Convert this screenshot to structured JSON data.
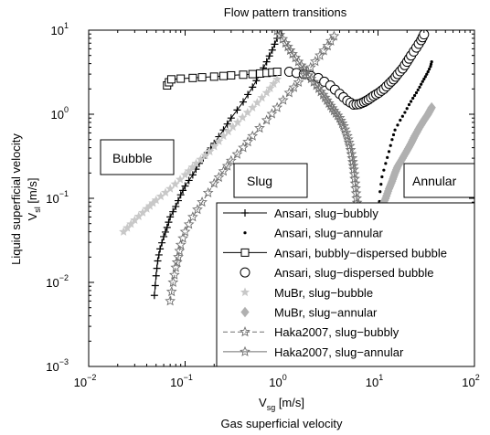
{
  "chart_data": {
    "type": "line",
    "title": "Flow pattern transitions",
    "xlabel_main": "V",
    "xlabel_sub": "sg",
    "xlabel_unit": " [m/s]",
    "xlabel_desc": "Gas superficial velocity",
    "ylabel_desc": "Liquid superficial velocity",
    "ylabel_main": "V",
    "ylabel_sub": "sl",
    "ylabel_unit": " [m/s]",
    "x_scale": "log",
    "y_scale": "log",
    "xlim": [
      0.01,
      100
    ],
    "ylim": [
      0.001,
      10
    ],
    "x_ticks": [
      {
        "v": 0.01,
        "base": "10",
        "exp": "−2"
      },
      {
        "v": 0.1,
        "base": "10",
        "exp": "−1"
      },
      {
        "v": 1,
        "base": "10",
        "exp": "0"
      },
      {
        "v": 10,
        "base": "10",
        "exp": "1"
      },
      {
        "v": 100,
        "base": "10",
        "exp": "2"
      }
    ],
    "y_ticks": [
      {
        "v": 0.001,
        "base": "10",
        "exp": "−3"
      },
      {
        "v": 0.01,
        "base": "10",
        "exp": "−2"
      },
      {
        "v": 0.1,
        "base": "10",
        "exp": "−1"
      },
      {
        "v": 1,
        "base": "10",
        "exp": "0"
      },
      {
        "v": 10,
        "base": "10",
        "exp": "1"
      }
    ],
    "grid": false,
    "legend_position": "bottom-right",
    "annotations": [
      {
        "text": "Bubble",
        "x": 0.035,
        "y": 0.3
      },
      {
        "text": "Slug",
        "x": 0.32,
        "y": 0.12
      },
      {
        "text": "Annular",
        "x": 18,
        "y": 0.12
      }
    ],
    "series": [
      {
        "name": "Ansari, slug−bubbly",
        "style": "plus",
        "color": "#000000",
        "x": [
          0.048,
          0.05,
          0.052,
          0.055,
          0.06,
          0.065,
          0.07,
          0.08,
          0.09,
          0.1,
          0.12,
          0.14,
          0.17,
          0.2,
          0.25,
          0.3,
          0.4,
          0.5,
          0.6,
          0.7,
          0.8,
          0.9
        ],
        "y": [
          0.007,
          0.012,
          0.018,
          0.025,
          0.035,
          0.045,
          0.06,
          0.08,
          0.11,
          0.14,
          0.19,
          0.26,
          0.35,
          0.45,
          0.65,
          0.9,
          1.4,
          2.1,
          3.0,
          4.2,
          5.8,
          8.0
        ]
      },
      {
        "name": "Ansari, slug−annular",
        "style": "dot",
        "color": "#000000",
        "x": [
          10.2,
          10.5,
          11,
          12,
          13,
          14,
          15,
          17,
          19,
          21,
          23,
          25,
          27,
          29,
          31,
          33,
          35,
          36
        ],
        "y": [
          0.07,
          0.12,
          0.18,
          0.26,
          0.36,
          0.5,
          0.65,
          0.85,
          1.05,
          1.3,
          1.55,
          1.8,
          2.1,
          2.45,
          2.8,
          3.2,
          3.7,
          4.2
        ]
      },
      {
        "name": "Ansari, bubbly−dispersed bubble",
        "style": "square",
        "color": "#000000",
        "x": [
          0.065,
          0.068,
          0.072,
          0.09,
          0.12,
          0.15,
          0.2,
          0.25,
          0.3,
          0.4,
          0.5,
          0.6,
          0.7,
          0.8,
          0.9
        ],
        "y": [
          2.2,
          2.4,
          2.6,
          2.65,
          2.7,
          2.75,
          2.8,
          2.85,
          2.9,
          2.95,
          3.0,
          3.05,
          3.1,
          3.15,
          3.2
        ]
      },
      {
        "name": "Ansari, slug−dispersed bubble",
        "style": "circle",
        "color": "#000000",
        "x": [
          1.2,
          1.7,
          2.4,
          3.2,
          4.0,
          4.8,
          5.6,
          6.4,
          7.2,
          8.0,
          9.0,
          10.2,
          11.5,
          13,
          14.5,
          16,
          18,
          20,
          22,
          25,
          28,
          30
        ],
        "y": [
          3.2,
          3.0,
          2.7,
          2.2,
          1.75,
          1.45,
          1.3,
          1.32,
          1.4,
          1.5,
          1.65,
          1.8,
          2.0,
          2.3,
          2.6,
          3.0,
          3.5,
          4.2,
          5.0,
          6.2,
          7.6,
          8.9
        ]
      },
      {
        "name": "MuBr,  slug−bubble",
        "style": "star-light",
        "color": "#c8c8c8",
        "x": [
          0.023,
          0.03,
          0.04,
          0.05,
          0.07,
          0.1,
          0.13,
          0.18,
          0.25,
          0.35,
          0.5,
          0.7,
          0.9
        ],
        "y": [
          0.04,
          0.055,
          0.075,
          0.095,
          0.13,
          0.19,
          0.26,
          0.36,
          0.55,
          0.8,
          1.2,
          1.8,
          2.6
        ]
      },
      {
        "name": "MuBr,  slug−annular",
        "style": "diamond-light",
        "color": "#b0b0b0",
        "x": [
          10.5,
          11,
          12,
          13,
          14,
          15,
          16,
          18,
          20,
          22,
          24,
          27,
          30,
          33,
          36
        ],
        "y": [
          0.06,
          0.08,
          0.1,
          0.13,
          0.16,
          0.2,
          0.24,
          0.3,
          0.37,
          0.45,
          0.55,
          0.7,
          0.85,
          1.0,
          1.2
        ]
      },
      {
        "name": "Haka2007, slug−bubbly",
        "style": "star-dash",
        "color": "#707070",
        "x": [
          0.07,
          0.075,
          0.08,
          0.085,
          0.09,
          0.1,
          0.12,
          0.15,
          0.2,
          0.25,
          0.3,
          0.4,
          0.5,
          0.7,
          0.9,
          1.2,
          1.5,
          2.0,
          2.5,
          3.0,
          3.5
        ],
        "y": [
          0.006,
          0.01,
          0.015,
          0.02,
          0.028,
          0.04,
          0.06,
          0.09,
          0.15,
          0.21,
          0.28,
          0.4,
          0.55,
          0.85,
          1.2,
          1.8,
          2.4,
          3.6,
          5.0,
          6.5,
          8.5
        ]
      },
      {
        "name": "Haka2007, slug−annular",
        "style": "star-solid",
        "color": "#707070",
        "x": [
          0.9,
          1.1,
          1.3,
          1.6,
          1.9,
          2.3,
          2.7,
          3.1,
          3.5,
          4.0,
          4.4,
          4.8,
          5.1,
          5.4,
          5.6,
          5.8,
          6.0,
          6.2
        ],
        "y": [
          9.8,
          7.0,
          5.2,
          3.8,
          2.9,
          2.2,
          1.7,
          1.35,
          1.1,
          0.9,
          0.72,
          0.55,
          0.42,
          0.3,
          0.22,
          0.15,
          0.1,
          0.07
        ]
      }
    ]
  }
}
